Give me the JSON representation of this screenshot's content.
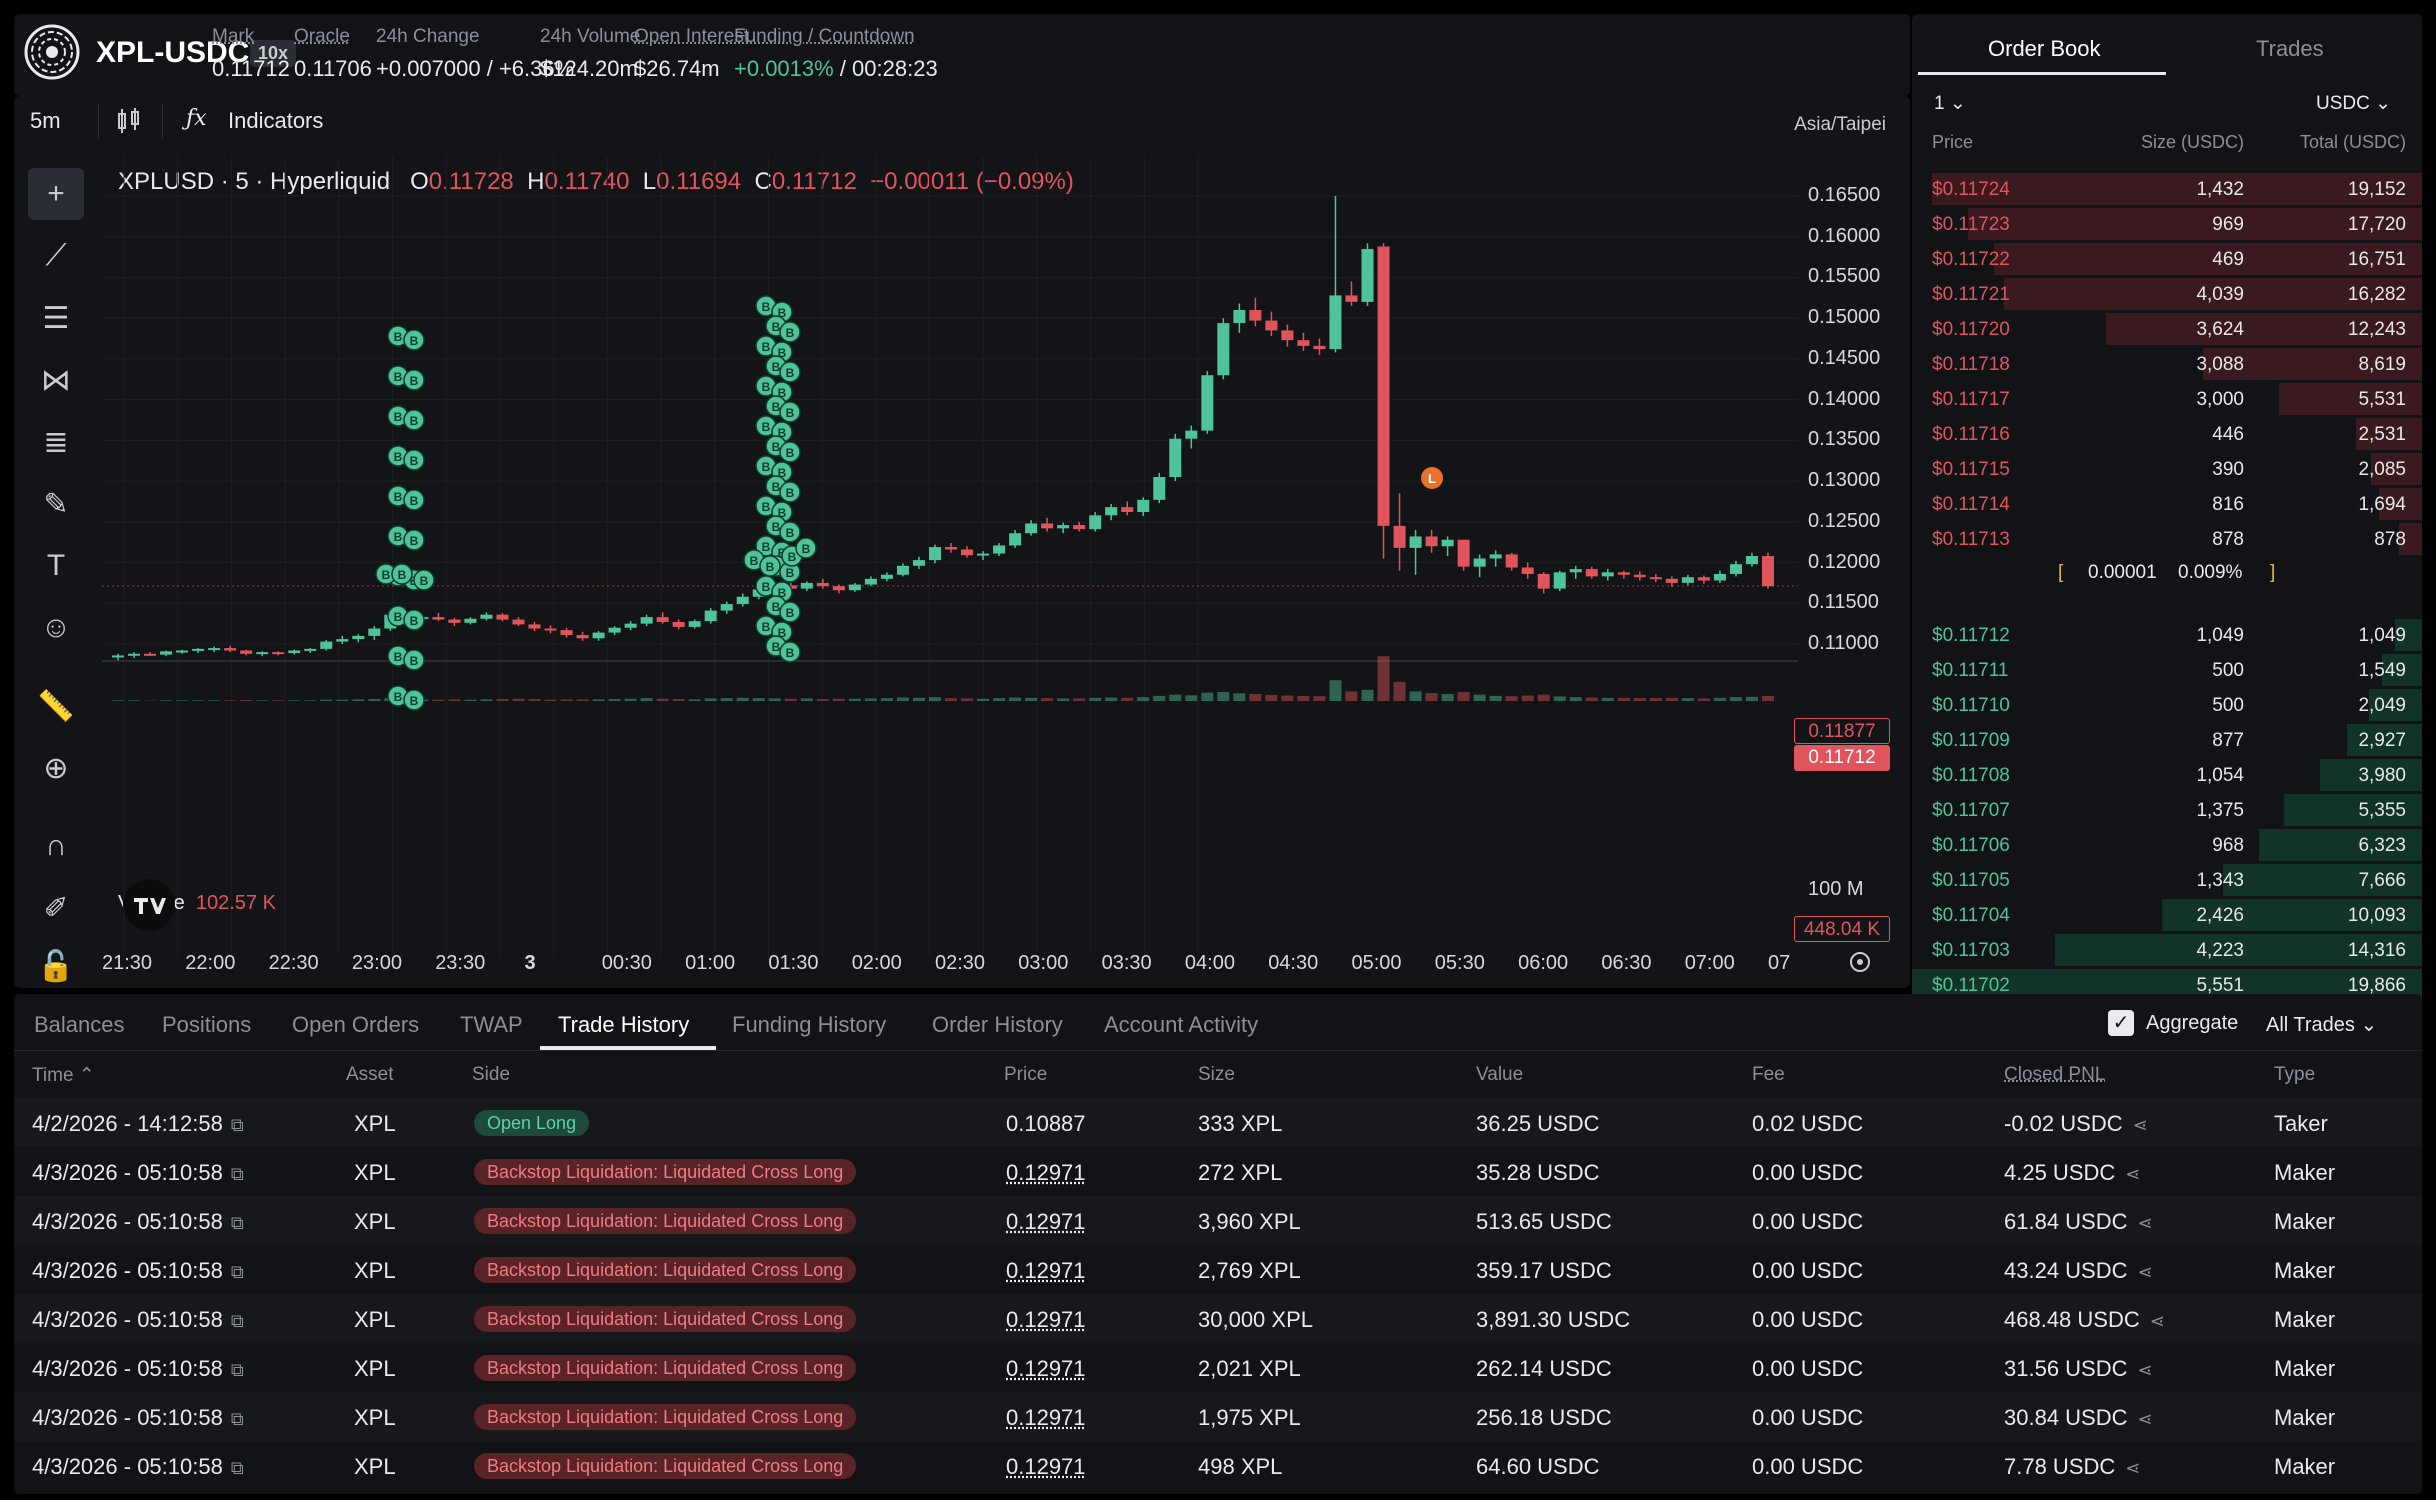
{
  "header": {
    "pair": "XPL-USDC",
    "leverage": "10x",
    "stats": [
      {
        "label": "Mark",
        "value": "0.11712",
        "underline": true
      },
      {
        "label": "Oracle",
        "value": "0.11706",
        "underline": true
      },
      {
        "label": "24h Change",
        "value": "+0.007000 / +6.36%",
        "green": true
      },
      {
        "label": "24h Volume",
        "value": "$124.20m"
      },
      {
        "label": "Open Interest",
        "value": "$26.74m",
        "underline": true
      },
      {
        "label": "Funding / Countdown",
        "value_green": "+0.0013%",
        "value_rest": " / 00:28:23",
        "underline": true
      }
    ]
  },
  "chart_toolbar": {
    "timeframe": "5m",
    "indicators": "Indicators",
    "timezone": "Asia/Taipei"
  },
  "legend": {
    "title": "XPLUSD · 5 · Hyperliquid",
    "o_label": "O",
    "o": "0.11728",
    "h_label": "H",
    "h": "0.11740",
    "l_label": "L",
    "l": "0.11694",
    "c_label": "C",
    "c": "0.11712",
    "chg": "−0.00011 (−0.09%)"
  },
  "volume_legend": {
    "label": "Volume",
    "value": "102.57 K"
  },
  "price_tags": {
    "last": "0.11877",
    "mark": "0.11712",
    "volume": "448.04 K",
    "vol_axis": "100 M"
  },
  "liquidation_marker": "L",
  "trade_marker": "B",
  "chart_data": {
    "type": "candlestick",
    "y_ticks": [
      "0.16500",
      "0.16000",
      "0.15500",
      "0.15000",
      "0.14500",
      "0.14000",
      "0.13500",
      "0.13000",
      "0.12500",
      "0.12000",
      "0.11500",
      "0.11000"
    ],
    "ylim": [
      0.108,
      0.1655
    ],
    "x_ticks": [
      "21:30",
      "22:00",
      "22:30",
      "23:00",
      "23:30",
      "3",
      "00:30",
      "01:00",
      "01:30",
      "02:00",
      "02:30",
      "03:00",
      "03:30",
      "04:00",
      "04:30",
      "05:00",
      "05:30",
      "06:00",
      "06:30",
      "07:00",
      "07"
    ],
    "candles": [
      [
        0.1085,
        0.1088,
        0.108,
        0.1086
      ],
      [
        0.1086,
        0.109,
        0.1083,
        0.1088
      ],
      [
        0.1088,
        0.109,
        0.1085,
        0.1087
      ],
      [
        0.1087,
        0.1092,
        0.1085,
        0.1091
      ],
      [
        0.1091,
        0.1093,
        0.1088,
        0.1092
      ],
      [
        0.1092,
        0.1095,
        0.1089,
        0.1094
      ],
      [
        0.1094,
        0.1097,
        0.109,
        0.1095
      ],
      [
        0.1095,
        0.1098,
        0.109,
        0.1092
      ],
      [
        0.1092,
        0.1093,
        0.1086,
        0.1088
      ],
      [
        0.1088,
        0.1091,
        0.1085,
        0.109
      ],
      [
        0.109,
        0.1091,
        0.1086,
        0.1089
      ],
      [
        0.1089,
        0.1093,
        0.1087,
        0.1092
      ],
      [
        0.1092,
        0.1095,
        0.1089,
        0.1094
      ],
      [
        0.1094,
        0.1105,
        0.1092,
        0.1103
      ],
      [
        0.1103,
        0.111,
        0.11,
        0.1106
      ],
      [
        0.1106,
        0.1112,
        0.1102,
        0.111
      ],
      [
        0.111,
        0.1122,
        0.1105,
        0.1119
      ],
      [
        0.1119,
        0.114,
        0.1116,
        0.1136
      ],
      [
        0.1136,
        0.114,
        0.1128,
        0.1131
      ],
      [
        0.1131,
        0.1135,
        0.1126,
        0.1133
      ],
      [
        0.1133,
        0.1138,
        0.1128,
        0.113
      ],
      [
        0.113,
        0.1132,
        0.1122,
        0.1126
      ],
      [
        0.1126,
        0.1133,
        0.1124,
        0.1131
      ],
      [
        0.1131,
        0.1139,
        0.1129,
        0.1136
      ],
      [
        0.1136,
        0.1138,
        0.1128,
        0.113
      ],
      [
        0.113,
        0.1133,
        0.1122,
        0.1124
      ],
      [
        0.1124,
        0.1127,
        0.1116,
        0.1119
      ],
      [
        0.1119,
        0.1123,
        0.1113,
        0.1117
      ],
      [
        0.1117,
        0.112,
        0.1108,
        0.1111
      ],
      [
        0.1111,
        0.1115,
        0.1104,
        0.1107
      ],
      [
        0.1107,
        0.1116,
        0.1104,
        0.1114
      ],
      [
        0.1114,
        0.1122,
        0.1111,
        0.112
      ],
      [
        0.112,
        0.1128,
        0.1117,
        0.1125
      ],
      [
        0.1125,
        0.1136,
        0.1122,
        0.1133
      ],
      [
        0.1133,
        0.1139,
        0.1125,
        0.1127
      ],
      [
        0.1127,
        0.113,
        0.1118,
        0.1121
      ],
      [
        0.1121,
        0.113,
        0.1119,
        0.1128
      ],
      [
        0.1128,
        0.1144,
        0.1125,
        0.1141
      ],
      [
        0.1141,
        0.1152,
        0.1137,
        0.1149
      ],
      [
        0.1149,
        0.1162,
        0.1146,
        0.1158
      ],
      [
        0.1158,
        0.117,
        0.1155,
        0.1167
      ],
      [
        0.1167,
        0.1175,
        0.1163,
        0.1172
      ],
      [
        0.1172,
        0.1178,
        0.1165,
        0.1168
      ],
      [
        0.1168,
        0.1177,
        0.1165,
        0.1175
      ],
      [
        0.1175,
        0.118,
        0.1168,
        0.1171
      ],
      [
        0.1171,
        0.1173,
        0.1162,
        0.1166
      ],
      [
        0.1166,
        0.1175,
        0.1164,
        0.1173
      ],
      [
        0.1173,
        0.1183,
        0.1171,
        0.118
      ],
      [
        0.118,
        0.1188,
        0.1177,
        0.1185
      ],
      [
        0.1185,
        0.1199,
        0.1183,
        0.1196
      ],
      [
        0.1196,
        0.1207,
        0.1192,
        0.1203
      ],
      [
        0.1203,
        0.1222,
        0.1199,
        0.1219
      ],
      [
        0.1219,
        0.1224,
        0.1212,
        0.1216
      ],
      [
        0.1216,
        0.122,
        0.1206,
        0.1209
      ],
      [
        0.1209,
        0.1214,
        0.1203,
        0.1211
      ],
      [
        0.1211,
        0.1224,
        0.1208,
        0.1221
      ],
      [
        0.1221,
        0.124,
        0.1218,
        0.1236
      ],
      [
        0.1236,
        0.1252,
        0.1233,
        0.1248
      ],
      [
        0.1248,
        0.1255,
        0.1238,
        0.1242
      ],
      [
        0.1242,
        0.1249,
        0.1236,
        0.1246
      ],
      [
        0.1246,
        0.125,
        0.1238,
        0.1241
      ],
      [
        0.1241,
        0.1262,
        0.1238,
        0.1258
      ],
      [
        0.1258,
        0.1272,
        0.1252,
        0.1268
      ],
      [
        0.1268,
        0.1275,
        0.1258,
        0.1262
      ],
      [
        0.1262,
        0.128,
        0.1257,
        0.1277
      ],
      [
        0.1277,
        0.131,
        0.1273,
        0.1305
      ],
      [
        0.1305,
        0.1358,
        0.13,
        0.1352
      ],
      [
        0.1352,
        0.1368,
        0.134,
        0.1362
      ],
      [
        0.1362,
        0.1435,
        0.1358,
        0.143
      ],
      [
        0.143,
        0.15,
        0.1425,
        0.1494
      ],
      [
        0.1494,
        0.1518,
        0.1482,
        0.151
      ],
      [
        0.151,
        0.1525,
        0.149,
        0.1497
      ],
      [
        0.1497,
        0.1508,
        0.1478,
        0.1485
      ],
      [
        0.1485,
        0.1492,
        0.1465,
        0.1473
      ],
      [
        0.1473,
        0.1482,
        0.146,
        0.1466
      ],
      [
        0.1466,
        0.1475,
        0.1455,
        0.1462
      ],
      [
        0.1462,
        0.165,
        0.1458,
        0.1528
      ],
      [
        0.1528,
        0.1545,
        0.1515,
        0.152
      ],
      [
        0.152,
        0.1592,
        0.1515,
        0.1585
      ],
      [
        0.1588,
        0.1592,
        0.1205,
        0.1245
      ],
      [
        0.1245,
        0.1285,
        0.119,
        0.1218
      ],
      [
        0.1218,
        0.124,
        0.1185,
        0.1232
      ],
      [
        0.1232,
        0.124,
        0.1212,
        0.122
      ],
      [
        0.122,
        0.1232,
        0.1208,
        0.1228
      ],
      [
        0.1228,
        0.1228,
        0.119,
        0.1195
      ],
      [
        0.1195,
        0.121,
        0.1182,
        0.1205
      ],
      [
        0.1205,
        0.1215,
        0.1195,
        0.121
      ],
      [
        0.121,
        0.1212,
        0.119,
        0.1194
      ],
      [
        0.1194,
        0.12,
        0.118,
        0.1186
      ],
      [
        0.1186,
        0.1188,
        0.1162,
        0.1168
      ],
      [
        0.1168,
        0.119,
        0.1165,
        0.1188
      ],
      [
        0.1188,
        0.1196,
        0.118,
        0.1192
      ],
      [
        0.1192,
        0.1195,
        0.118,
        0.1183
      ],
      [
        0.1183,
        0.1192,
        0.1178,
        0.1188
      ],
      [
        0.1188,
        0.119,
        0.118,
        0.1185
      ],
      [
        0.1185,
        0.1189,
        0.1178,
        0.1182
      ],
      [
        0.1182,
        0.1186,
        0.1176,
        0.118
      ],
      [
        0.118,
        0.1183,
        0.117,
        0.1175
      ],
      [
        0.1175,
        0.1185,
        0.1172,
        0.1182
      ],
      [
        0.1182,
        0.1184,
        0.1174,
        0.1178
      ],
      [
        0.1178,
        0.119,
        0.1175,
        0.1186
      ],
      [
        0.1186,
        0.1202,
        0.1183,
        0.1198
      ],
      [
        0.1198,
        0.1212,
        0.1195,
        0.1208
      ],
      [
        0.1208,
        0.1212,
        0.1168,
        0.1171
      ]
    ],
    "volumes": [
      0.2,
      0.2,
      0.1,
      0.2,
      0.2,
      0.2,
      0.2,
      0.2,
      0.3,
      0.2,
      0.2,
      0.2,
      0.2,
      0.4,
      0.4,
      0.5,
      0.6,
      0.9,
      0.6,
      0.4,
      0.4,
      0.5,
      0.4,
      0.5,
      0.6,
      0.7,
      0.6,
      0.4,
      0.5,
      0.5,
      0.5,
      0.6,
      0.7,
      0.9,
      0.7,
      0.6,
      0.5,
      0.8,
      0.9,
      1.0,
      0.9,
      0.8,
      0.7,
      0.8,
      0.6,
      0.7,
      0.7,
      0.8,
      0.9,
      1.1,
      1.0,
      1.2,
      0.9,
      0.8,
      0.7,
      0.9,
      1.1,
      1.0,
      0.9,
      0.8,
      0.8,
      1.0,
      1.1,
      1.0,
      1.2,
      1.6,
      2.0,
      1.8,
      2.6,
      2.8,
      2.4,
      2.2,
      1.9,
      1.7,
      1.6,
      1.5,
      6.5,
      3.0,
      3.5,
      14.0,
      6.0,
      3.0,
      2.5,
      2.2,
      2.8,
      2.0,
      1.6,
      1.5,
      1.7,
      2.0,
      1.4,
      1.2,
      1.1,
      1.0,
      1.0,
      0.9,
      0.9,
      1.0,
      0.9,
      0.8,
      1.0,
      1.2,
      1.3,
      1.6
    ]
  },
  "orderbook": {
    "tabs": [
      "Order Book",
      "Trades"
    ],
    "group": "1",
    "currency": "USDC",
    "headers": [
      "Price",
      "Size (USDC)",
      "Total (USDC)"
    ],
    "asks": [
      {
        "price": "$0.11724",
        "size": "1,432",
        "total": "19,152",
        "depth": 0.96
      },
      {
        "price": "$0.11723",
        "size": "969",
        "total": "17,720",
        "depth": 0.89
      },
      {
        "price": "$0.11722",
        "size": "469",
        "total": "16,751",
        "depth": 0.84
      },
      {
        "price": "$0.11721",
        "size": "4,039",
        "total": "16,282",
        "depth": 0.82
      },
      {
        "price": "$0.11720",
        "size": "3,624",
        "total": "12,243",
        "depth": 0.62
      },
      {
        "price": "$0.11718",
        "size": "3,088",
        "total": "8,619",
        "depth": 0.43
      },
      {
        "price": "$0.11717",
        "size": "3,000",
        "total": "5,531",
        "depth": 0.28
      },
      {
        "price": "$0.11716",
        "size": "446",
        "total": "2,531",
        "depth": 0.13
      },
      {
        "price": "$0.11715",
        "size": "390",
        "total": "2,085",
        "depth": 0.1
      },
      {
        "price": "$0.11714",
        "size": "816",
        "total": "1,694",
        "depth": 0.085
      },
      {
        "price": "$0.11713",
        "size": "878",
        "total": "878",
        "depth": 0.045
      }
    ],
    "spread": {
      "value": "0.00001",
      "pct": "0.009%"
    },
    "bids": [
      {
        "price": "$0.11712",
        "size": "1,049",
        "total": "1,049",
        "depth": 0.053
      },
      {
        "price": "$0.11711",
        "size": "500",
        "total": "1,549",
        "depth": 0.078
      },
      {
        "price": "$0.11710",
        "size": "500",
        "total": "2,049",
        "depth": 0.103
      },
      {
        "price": "$0.11709",
        "size": "877",
        "total": "2,927",
        "depth": 0.147
      },
      {
        "price": "$0.11708",
        "size": "1,054",
        "total": "3,980",
        "depth": 0.2
      },
      {
        "price": "$0.11707",
        "size": "1,375",
        "total": "5,355",
        "depth": 0.27
      },
      {
        "price": "$0.11706",
        "size": "968",
        "total": "6,323",
        "depth": 0.32
      },
      {
        "price": "$0.11705",
        "size": "1,343",
        "total": "7,666",
        "depth": 0.39
      },
      {
        "price": "$0.11704",
        "size": "2,426",
        "total": "10,093",
        "depth": 0.51
      },
      {
        "price": "$0.11703",
        "size": "4,223",
        "total": "14,316",
        "depth": 0.72
      },
      {
        "price": "$0.11702",
        "size": "5,551",
        "total": "19,866",
        "depth": 1.0
      }
    ]
  },
  "bottom": {
    "tabs": [
      "Balances",
      "Positions",
      "Open Orders",
      "TWAP",
      "Trade History",
      "Funding History",
      "Order History",
      "Account Activity"
    ],
    "active_tab": 4,
    "aggregate_label": "Aggregate",
    "filter": "All Trades",
    "columns": [
      "Time",
      "Asset",
      "Side",
      "Price",
      "Size",
      "Value",
      "Fee",
      "Closed PNL",
      "Type"
    ],
    "rows": [
      {
        "time": "4/2/2026 - 14:12:58",
        "asset": "XPL",
        "side": "Open Long",
        "side_type": "long",
        "price": "0.10887",
        "size": "333 XPL",
        "value": "36.25 USDC",
        "fee": "0.02 USDC",
        "pnl": "-0.02 USDC",
        "pnl_neg": true,
        "type": "Taker"
      },
      {
        "time": "4/3/2026 - 05:10:58",
        "asset": "XPL",
        "side": "Backstop Liquidation: Liquidated Cross Long",
        "side_type": "liq",
        "price": "0.12971",
        "size": "272 XPL",
        "value": "35.28 USDC",
        "fee": "0.00 USDC",
        "pnl": "4.25 USDC",
        "type": "Maker"
      },
      {
        "time": "4/3/2026 - 05:10:58",
        "asset": "XPL",
        "side": "Backstop Liquidation: Liquidated Cross Long",
        "side_type": "liq",
        "price": "0.12971",
        "size": "3,960 XPL",
        "value": "513.65 USDC",
        "fee": "0.00 USDC",
        "pnl": "61.84 USDC",
        "type": "Maker"
      },
      {
        "time": "4/3/2026 - 05:10:58",
        "asset": "XPL",
        "side": "Backstop Liquidation: Liquidated Cross Long",
        "side_type": "liq",
        "price": "0.12971",
        "size": "2,769 XPL",
        "value": "359.17 USDC",
        "fee": "0.00 USDC",
        "pnl": "43.24 USDC",
        "type": "Maker"
      },
      {
        "time": "4/3/2026 - 05:10:58",
        "asset": "XPL",
        "side": "Backstop Liquidation: Liquidated Cross Long",
        "side_type": "liq",
        "price": "0.12971",
        "size": "30,000 XPL",
        "value": "3,891.30 USDC",
        "fee": "0.00 USDC",
        "pnl": "468.48 USDC",
        "type": "Maker"
      },
      {
        "time": "4/3/2026 - 05:10:58",
        "asset": "XPL",
        "side": "Backstop Liquidation: Liquidated Cross Long",
        "side_type": "liq",
        "price": "0.12971",
        "size": "2,021 XPL",
        "value": "262.14 USDC",
        "fee": "0.00 USDC",
        "pnl": "31.56 USDC",
        "type": "Maker"
      },
      {
        "time": "4/3/2026 - 05:10:58",
        "asset": "XPL",
        "side": "Backstop Liquidation: Liquidated Cross Long",
        "side_type": "liq",
        "price": "0.12971",
        "size": "1,975 XPL",
        "value": "256.18 USDC",
        "fee": "0.00 USDC",
        "pnl": "30.84 USDC",
        "type": "Maker"
      },
      {
        "time": "4/3/2026 - 05:10:58",
        "asset": "XPL",
        "side": "Backstop Liquidation: Liquidated Cross Long",
        "side_type": "liq",
        "price": "0.12971",
        "size": "498 XPL",
        "value": "64.60 USDC",
        "fee": "0.00 USDC",
        "pnl": "7.78 USDC",
        "type": "Maker"
      }
    ]
  },
  "colors": {
    "up": "#4fc39a",
    "down": "#e2545c",
    "panel": "#121317",
    "accent": "#fff"
  }
}
